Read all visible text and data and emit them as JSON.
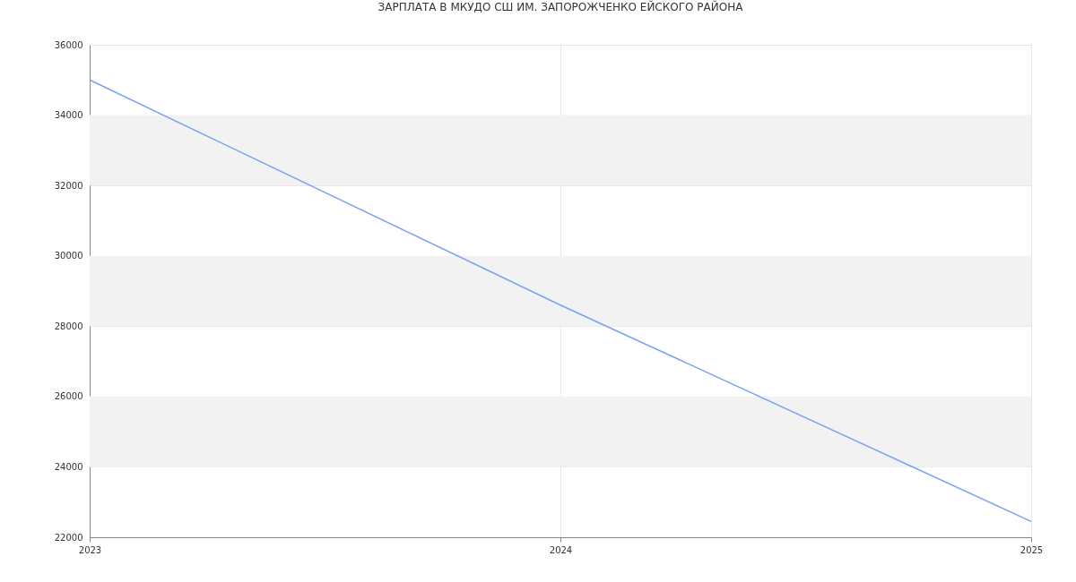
{
  "chart_data": {
    "type": "line",
    "title": "ЗАРПЛАТА В МКУДО СШ ИМ. ЗАПОРОЖЧЕНКО ЕЙСКОГО РАЙОНА",
    "x": [
      2023,
      2024,
      2025
    ],
    "series": [
      {
        "color": "#77a1f5",
        "values": [
          35000,
          28600,
          22450
        ]
      }
    ],
    "xlim": [
      2023,
      2025
    ],
    "xticks": [
      2023,
      2024,
      2025
    ],
    "ylim": [
      22000,
      36000
    ],
    "yticks": [
      22000,
      24000,
      26000,
      28000,
      30000,
      32000,
      34000,
      36000
    ],
    "bands": [
      {
        "axis": "y",
        "from": 24000,
        "to": 26000,
        "color": "#f2f2f2"
      },
      {
        "axis": "y",
        "from": 28000,
        "to": 30000,
        "color": "#f2f2f2"
      },
      {
        "axis": "y",
        "from": 32000,
        "to": 34000,
        "color": "#f2f2f2"
      }
    ],
    "grid": true,
    "marker": "none",
    "line_style": "solid"
  }
}
